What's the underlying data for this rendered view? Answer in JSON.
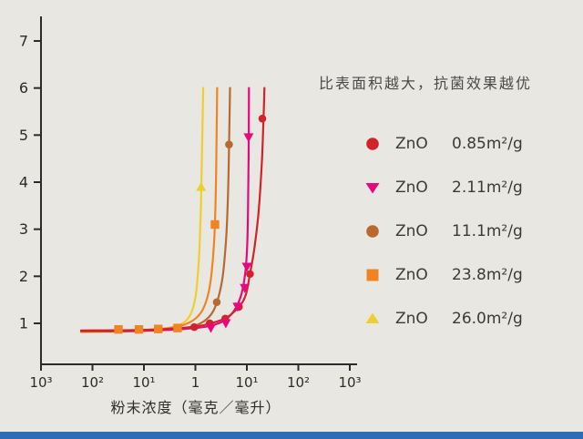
{
  "page": {
    "background": "#e9e7e2",
    "footer_bar_color": "#2e6db4"
  },
  "legend": {
    "rows": [
      {
        "marker": "circle",
        "color": "#d2232a",
        "name": "ZnO",
        "value": "0.85m²/g"
      },
      {
        "marker": "triangle-down",
        "color": "#e5097f",
        "name": "ZnO",
        "value": "2.11m²/g"
      },
      {
        "marker": "circle",
        "color": "#b9682f",
        "name": "ZnO",
        "value": "11.1m²/g"
      },
      {
        "marker": "square",
        "color": "#f08421",
        "name": "ZnO",
        "value": "23.8m²/g"
      },
      {
        "marker": "triangle-up",
        "color": "#edd02e",
        "name": "ZnO",
        "value": "26.0m²/g"
      }
    ]
  },
  "chart_data": {
    "type": "line",
    "title": "比表面积越大，抗菌效果越优",
    "xlabel": "粉末浓度（毫克／毫升）",
    "ylabel": "",
    "x_scale": "log",
    "x_tick_labels": [
      "10³",
      "10²",
      "10¹",
      "1",
      "10¹",
      "10²",
      "10³"
    ],
    "x_tick_values": [
      0.001,
      0.01,
      0.1,
      1,
      10,
      100,
      1000
    ],
    "y_ticks": [
      1,
      2,
      3,
      4,
      5,
      6,
      7
    ],
    "ylim": [
      0.13,
      7.5
    ],
    "grid": false,
    "legend_position": "right",
    "series": [
      {
        "name": "ZnO 0.85m²/g",
        "surface_area": "0.85m²/g",
        "color": "#d2232a",
        "marker": "circle",
        "curve": [
          [
            0.006,
            0.85
          ],
          [
            0.1,
            0.86
          ],
          [
            0.5,
            0.9
          ],
          [
            1,
            0.93
          ],
          [
            2,
            1.0
          ],
          [
            4,
            1.12
          ],
          [
            7,
            1.35
          ],
          [
            9.5,
            1.6
          ],
          [
            11.5,
            2.05
          ],
          [
            14,
            2.6
          ],
          [
            17,
            3.4
          ],
          [
            19.5,
            4.4
          ],
          [
            21,
            5.3
          ],
          [
            22,
            6.0
          ]
        ],
        "points": [
          [
            0.45,
            0.9
          ],
          [
            0.95,
            0.92
          ],
          [
            1.9,
            1.0
          ],
          [
            3.8,
            1.1
          ],
          [
            7,
            1.35
          ],
          [
            11.5,
            2.05
          ],
          [
            20,
            5.35
          ]
        ]
      },
      {
        "name": "ZnO 2.11m²/g",
        "surface_area": "2.11m²/g",
        "color": "#e5097f",
        "marker": "triangle-down",
        "curve": [
          [
            0.006,
            0.84
          ],
          [
            0.05,
            0.84
          ],
          [
            0.3,
            0.86
          ],
          [
            1,
            0.9
          ],
          [
            2,
            0.95
          ],
          [
            3.5,
            1.05
          ],
          [
            5.5,
            1.25
          ],
          [
            7.5,
            1.55
          ],
          [
            9,
            1.95
          ],
          [
            10,
            2.5
          ],
          [
            10.5,
            3.3
          ],
          [
            10.8,
            4.5
          ],
          [
            11,
            6.0
          ]
        ],
        "points": [
          [
            2.0,
            0.9
          ],
          [
            3.9,
            1.0
          ],
          [
            6.6,
            1.35
          ],
          [
            9.1,
            1.75
          ],
          [
            10,
            2.2
          ],
          [
            10.8,
            4.95
          ]
        ]
      },
      {
        "name": "ZnO 11.1m²/g",
        "surface_area": "11.1m²/g",
        "color": "#b9682f",
        "marker": "circle",
        "curve": [
          [
            0.006,
            0.83
          ],
          [
            0.05,
            0.83
          ],
          [
            0.3,
            0.86
          ],
          [
            0.8,
            0.92
          ],
          [
            1.5,
            1.05
          ],
          [
            2.2,
            1.25
          ],
          [
            2.8,
            1.55
          ],
          [
            3.4,
            2.0
          ],
          [
            3.9,
            2.7
          ],
          [
            4.2,
            3.4
          ],
          [
            4.45,
            4.4
          ],
          [
            4.6,
            5.3
          ],
          [
            4.7,
            6.0
          ]
        ],
        "points": [
          [
            2.6,
            1.45
          ],
          [
            4.5,
            4.8
          ]
        ]
      },
      {
        "name": "ZnO 23.8m²/g",
        "surface_area": "23.8m²/g",
        "color": "#f08421",
        "marker": "square",
        "curve": [
          [
            0.006,
            0.82
          ],
          [
            0.03,
            0.84
          ],
          [
            0.1,
            0.86
          ],
          [
            0.3,
            0.9
          ],
          [
            0.6,
            0.97
          ],
          [
            1.0,
            1.1
          ],
          [
            1.4,
            1.3
          ],
          [
            1.8,
            1.65
          ],
          [
            2.1,
            2.15
          ],
          [
            2.35,
            2.9
          ],
          [
            2.5,
            3.9
          ],
          [
            2.6,
            5.2
          ],
          [
            2.65,
            6.0
          ]
        ],
        "points": [
          [
            0.032,
            0.87
          ],
          [
            0.08,
            0.87
          ],
          [
            0.19,
            0.88
          ],
          [
            0.45,
            0.9
          ],
          [
            2.4,
            3.1
          ]
        ]
      },
      {
        "name": "ZnO 26.0m²/g",
        "surface_area": "26.0m²/g",
        "color": "#edd02e",
        "marker": "triangle-up",
        "curve": [
          [
            0.006,
            0.81
          ],
          [
            0.02,
            0.82
          ],
          [
            0.08,
            0.84
          ],
          [
            0.2,
            0.87
          ],
          [
            0.4,
            0.93
          ],
          [
            0.65,
            1.05
          ],
          [
            0.85,
            1.25
          ],
          [
            1.0,
            1.55
          ],
          [
            1.1,
            1.95
          ],
          [
            1.2,
            2.6
          ],
          [
            1.28,
            3.5
          ],
          [
            1.33,
            4.4
          ],
          [
            1.38,
            5.3
          ],
          [
            1.42,
            6.0
          ]
        ],
        "points": [
          [
            1.29,
            3.9
          ]
        ]
      }
    ]
  }
}
